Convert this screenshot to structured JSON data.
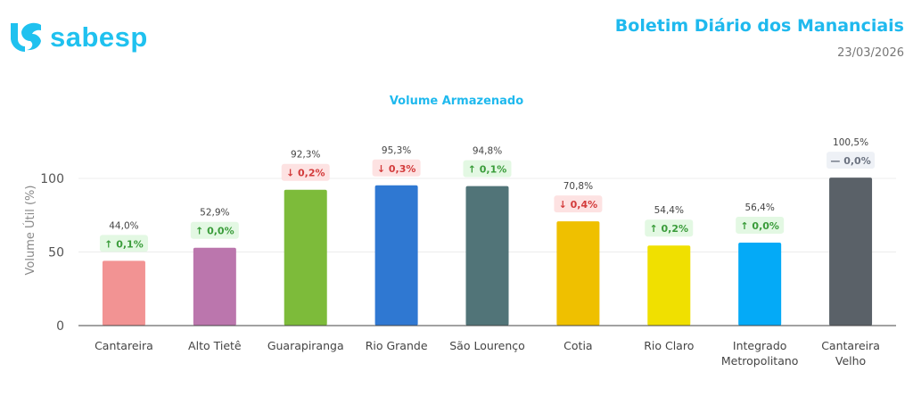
{
  "header": {
    "logo_text": "sabesp",
    "title": "Boletim Diário dos Mananciais",
    "date": "23/03/2026"
  },
  "chart_data": {
    "type": "bar",
    "title": "Volume Armazenado",
    "ylabel": "Volume Útil (%)",
    "xlabel": "",
    "ylim": [
      0,
      100
    ],
    "yticks": [
      "0",
      "50",
      "100"
    ],
    "grid": true,
    "categories": [
      "Cantareira",
      "Alto Tietê",
      "Guarapiranga",
      "Rio Grande",
      "São Lourenço",
      "Cotia",
      "Rio Claro",
      "Integrado Metropolitano",
      "Cantareira Velho"
    ],
    "values": [
      44.0,
      52.9,
      92.3,
      95.3,
      94.8,
      70.8,
      54.4,
      56.4,
      100.5
    ],
    "value_labels": [
      "44,0%",
      "52,9%",
      "92,3%",
      "95,3%",
      "94,8%",
      "70,8%",
      "54,4%",
      "56,4%",
      "100,5%"
    ],
    "changes": [
      {
        "direction": "up",
        "label": "0,1%"
      },
      {
        "direction": "up",
        "label": "0,0%"
      },
      {
        "direction": "down",
        "label": "0,2%"
      },
      {
        "direction": "down",
        "label": "0,3%"
      },
      {
        "direction": "up",
        "label": "0,1%"
      },
      {
        "direction": "down",
        "label": "0,4%"
      },
      {
        "direction": "up",
        "label": "0,2%"
      },
      {
        "direction": "up",
        "label": "0,0%"
      },
      {
        "direction": "flat",
        "label": "0,0%"
      }
    ],
    "colors": [
      "#f29393",
      "#bb76ad",
      "#7dbb3a",
      "#2f78d2",
      "#517478",
      "#efc000",
      "#f0e000",
      "#04aaf7",
      "#5a6168"
    ],
    "change_colors": {
      "up": {
        "bg": "#e3f8e3",
        "fg": "#3a9c3a"
      },
      "down": {
        "bg": "#fde2e2",
        "fg": "#d33b3b"
      },
      "flat": {
        "bg": "#eef1f6",
        "fg": "#6b7280"
      }
    }
  }
}
